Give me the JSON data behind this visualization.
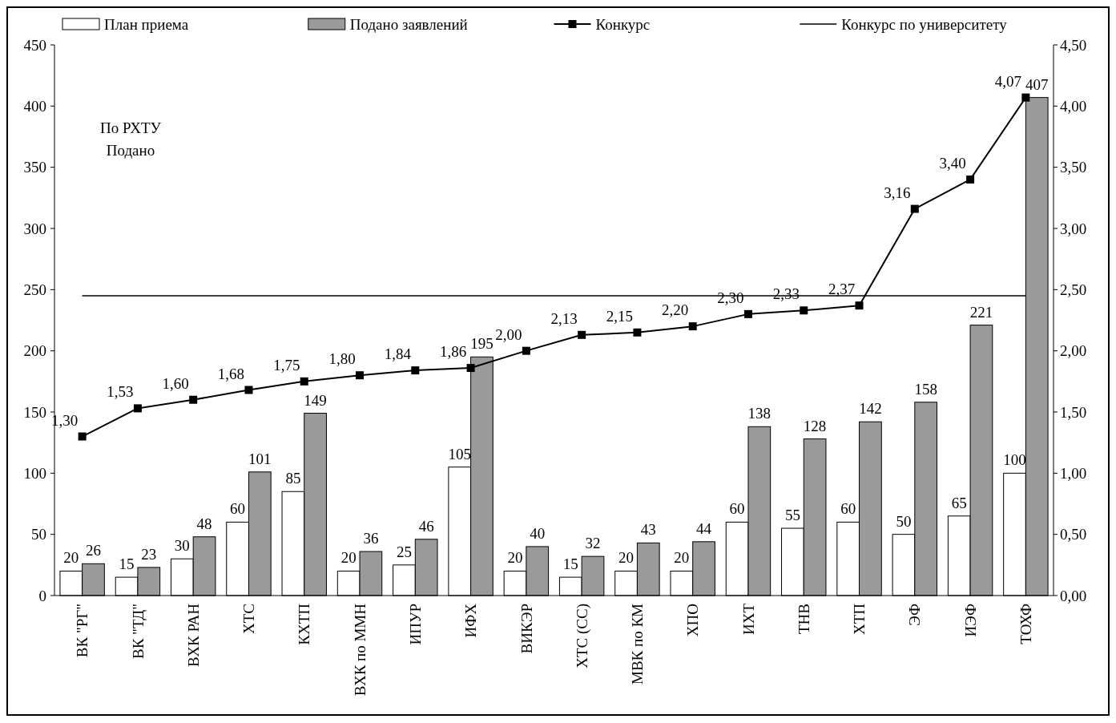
{
  "chart_data": {
    "type": "bar",
    "categories": [
      "ВК \"РГ\"",
      "ВК \"ТД\"",
      "ВХК РАН",
      "ХТС",
      "КХТП",
      "ВХК по ММН",
      "ИПУР",
      "ИФХ",
      "ВИКЭР",
      "ХТС (СС)",
      "МВК по КМ",
      "ХПО",
      "ИХТ",
      "ТНВ",
      "ХТП",
      "ЭФ",
      "ИЭФ",
      "ТОХФ"
    ],
    "series": [
      {
        "name": "План приема",
        "color": "#ffffff",
        "values": [
          20,
          15,
          30,
          60,
          85,
          20,
          25,
          105,
          20,
          15,
          20,
          20,
          60,
          55,
          60,
          50,
          65,
          100
        ]
      },
      {
        "name": "Подано заявлений",
        "color": "#9a9a9a",
        "values": [
          26,
          23,
          48,
          101,
          149,
          36,
          46,
          195,
          40,
          32,
          43,
          44,
          138,
          128,
          142,
          158,
          221,
          407
        ]
      },
      {
        "name": "Конкурс",
        "type": "line",
        "axis": "y2",
        "color": "#000000",
        "marker": "square",
        "values": [
          1.3,
          1.53,
          1.6,
          1.68,
          1.75,
          1.8,
          1.84,
          1.86,
          2.0,
          2.13,
          2.15,
          2.2,
          2.3,
          2.33,
          2.37,
          3.16,
          3.4,
          4.07
        ],
        "value_labels": [
          "1,30",
          "1,53",
          "1,60",
          "1,68",
          "1,75",
          "1,80",
          "1,84",
          "1,86",
          "2,00",
          "2,13",
          "2,15",
          "2,20",
          "2,30",
          "2,33",
          "2,37",
          "3,16",
          "3,40",
          "4,07"
        ]
      }
    ],
    "ylim": [
      0,
      450
    ],
    "yticks": [
      0,
      50,
      100,
      150,
      200,
      250,
      300,
      350,
      400,
      450
    ],
    "y2lim": [
      0,
      4.5
    ],
    "y2ticks": [
      {
        "value": 0,
        "label": "0,00"
      },
      {
        "value": 0.5,
        "label": "0,50"
      },
      {
        "value": 1,
        "label": "1,00"
      },
      {
        "value": 1.5,
        "label": "1,50"
      },
      {
        "value": 2,
        "label": "2,00"
      },
      {
        "value": 2.5,
        "label": "2,50"
      },
      {
        "value": 3,
        "label": "3,00"
      },
      {
        "value": 3.5,
        "label": "3,50"
      },
      {
        "value": 4,
        "label": "4,00"
      },
      {
        "value": 4.5,
        "label": "4,50"
      }
    ],
    "ref_lines": [
      {
        "axis": "y2",
        "value": 2.45,
        "label": "Конкурс по университету",
        "color": "#000000"
      }
    ],
    "annotations": [
      "По РХТУ",
      "Подано"
    ],
    "data_labels": true,
    "legend": "top",
    "grid": false
  }
}
